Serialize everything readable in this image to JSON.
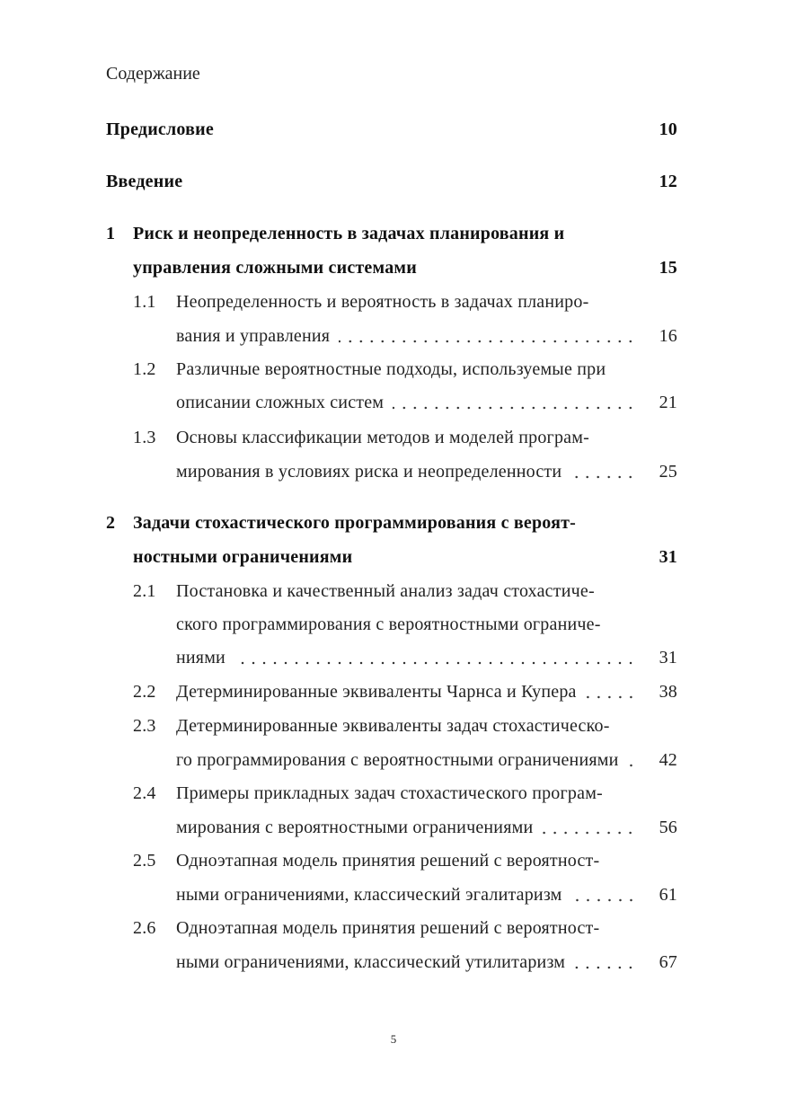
{
  "title": "Содержание",
  "entries": [
    {
      "type": "front",
      "num": "",
      "lines": [
        "Предисловие"
      ],
      "page": "10"
    },
    {
      "type": "front",
      "num": "",
      "lines": [
        "Введение"
      ],
      "page": "12"
    },
    {
      "type": "chapter",
      "num": "1",
      "lines": [
        "Риск и неопределенность в задачах планирования и",
        "управления сложными системами"
      ],
      "page": "15"
    },
    {
      "type": "section",
      "num": "1.1",
      "lines": [
        "Неопределенность и вероятность в задачах планиро-",
        "вания и управления"
      ],
      "page": "16"
    },
    {
      "type": "section",
      "num": "1.2",
      "lines": [
        "Различные вероятностные подходы, используемые при",
        "описании сложных систем"
      ],
      "page": "21"
    },
    {
      "type": "section",
      "num": "1.3",
      "lines": [
        "Основы классификации методов и моделей програм-",
        "мирования в условиях риска и неопределенности"
      ],
      "page": "25"
    },
    {
      "type": "chapter",
      "num": "2",
      "lines": [
        "Задачи стохастического программирования с вероят-",
        "ностными ограничениями"
      ],
      "page": "31"
    },
    {
      "type": "section",
      "num": "2.1",
      "lines": [
        "Постановка и качественный анализ задач стохастиче-",
        "ского программирования с вероятностными ограниче-",
        "ниями"
      ],
      "page": "31"
    },
    {
      "type": "section",
      "num": "2.2",
      "lines": [
        "Детерминированные эквиваленты Чарнса и Купера"
      ],
      "page": "38"
    },
    {
      "type": "section",
      "num": "2.3",
      "lines": [
        "Детерминированные эквиваленты задач стохастическо-",
        "го программирования с вероятностными ограничениями"
      ],
      "page": "42"
    },
    {
      "type": "section",
      "num": "2.4",
      "lines": [
        "Примеры прикладных задач стохастического програм-",
        "мирования с вероятностными ограничениями"
      ],
      "page": "56"
    },
    {
      "type": "section",
      "num": "2.5",
      "lines": [
        "Одноэтапная модель принятия решений с вероятност-",
        "ными ограничениями, классический эгалитаризм"
      ],
      "page": "61"
    },
    {
      "type": "section",
      "num": "2.6",
      "lines": [
        "Одноэтапная модель принятия решений с вероятност-",
        "ными ограничениями, классический утилитаризм"
      ],
      "page": "67"
    }
  ],
  "page_number": "5"
}
